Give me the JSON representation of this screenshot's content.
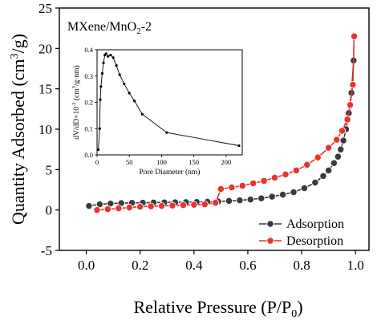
{
  "chart_data": {
    "type": "scatter",
    "panel_label": "MXene/MnO",
    "panel_label_sub": "2",
    "panel_label_suffix": "-2",
    "xlabel": "Relative Pressure (P/P",
    "xlabel_sub": "0",
    "xlabel_suffix": ")",
    "ylabel": "Quantity Adsorbed (cm",
    "ylabel_sup": "3",
    "ylabel_suffix": "/g)",
    "xlim": [
      -0.1,
      1.05
    ],
    "ylim": [
      -5,
      25
    ],
    "xticks": [
      "0.0",
      "0.2",
      "0.4",
      "0.6",
      "0.8",
      "1.0"
    ],
    "xtick_values": [
      0.0,
      0.2,
      0.4,
      0.6,
      0.8,
      1.0
    ],
    "yticks": [
      "-5",
      "0",
      "5",
      "10",
      "15",
      "20",
      "25"
    ],
    "ytick_values": [
      -5,
      0,
      5,
      10,
      15,
      20,
      25
    ],
    "legend_position": "lower-right",
    "series": [
      {
        "name": "Adsorption",
        "color": "#3a3a3a",
        "x": [
          0.01,
          0.05,
          0.09,
          0.13,
          0.17,
          0.21,
          0.25,
          0.29,
          0.33,
          0.37,
          0.41,
          0.45,
          0.49,
          0.53,
          0.57,
          0.61,
          0.65,
          0.69,
          0.73,
          0.77,
          0.81,
          0.85,
          0.88,
          0.9,
          0.92,
          0.935,
          0.945,
          0.955,
          0.965,
          0.975,
          0.985,
          0.993
        ],
        "y": [
          0.5,
          0.7,
          0.8,
          0.85,
          0.88,
          0.9,
          0.92,
          0.94,
          0.95,
          0.97,
          0.99,
          1.02,
          1.05,
          1.12,
          1.2,
          1.3,
          1.45,
          1.65,
          1.9,
          2.2,
          2.7,
          3.4,
          4.2,
          4.9,
          5.8,
          6.6,
          7.5,
          8.6,
          10.0,
          12.0,
          14.5,
          18.5
        ]
      },
      {
        "name": "Desorption",
        "color": "#e8332e",
        "x": [
          0.04,
          0.08,
          0.12,
          0.16,
          0.2,
          0.24,
          0.28,
          0.32,
          0.36,
          0.4,
          0.44,
          0.48,
          0.5,
          0.54,
          0.58,
          0.62,
          0.66,
          0.7,
          0.74,
          0.78,
          0.82,
          0.86,
          0.9,
          0.93,
          0.95,
          0.97,
          0.98,
          0.99,
          0.995
        ],
        "y": [
          0.0,
          0.1,
          0.2,
          0.3,
          0.4,
          0.45,
          0.5,
          0.55,
          0.6,
          0.65,
          0.7,
          0.9,
          2.6,
          2.8,
          3.0,
          3.3,
          3.6,
          4.0,
          4.4,
          4.9,
          5.6,
          6.5,
          7.7,
          8.7,
          9.8,
          11.2,
          13.0,
          15.5,
          21.5
        ]
      }
    ],
    "inset": {
      "type": "line",
      "xlabel": "Pore Diameter (nm)",
      "ylabel": "dV/dD×10",
      "ylabel_sup": "-3",
      "ylabel_suffix": " (cm",
      "ylabel_sup2": "3",
      "ylabel_suffix2": "/g·nm)",
      "xlim": [
        0,
        225
      ],
      "ylim": [
        0,
        0.4
      ],
      "xticks": [
        "0",
        "50",
        "100",
        "150",
        "200"
      ],
      "xtick_values": [
        0,
        50,
        100,
        150,
        200
      ],
      "yticks": [
        "0.0",
        "0.1",
        "0.2",
        "0.3",
        "0.4"
      ],
      "ytick_values": [
        0,
        0.1,
        0.2,
        0.3,
        0.4
      ],
      "x": [
        2,
        4,
        5,
        6,
        8,
        10,
        12,
        14,
        17,
        21,
        25,
        30,
        35,
        42,
        50,
        58,
        70,
        108,
        220
      ],
      "y": [
        0.02,
        0.1,
        0.21,
        0.26,
        0.31,
        0.35,
        0.38,
        0.385,
        0.375,
        0.38,
        0.37,
        0.34,
        0.305,
        0.27,
        0.235,
        0.205,
        0.155,
        0.085,
        0.035
      ]
    }
  }
}
